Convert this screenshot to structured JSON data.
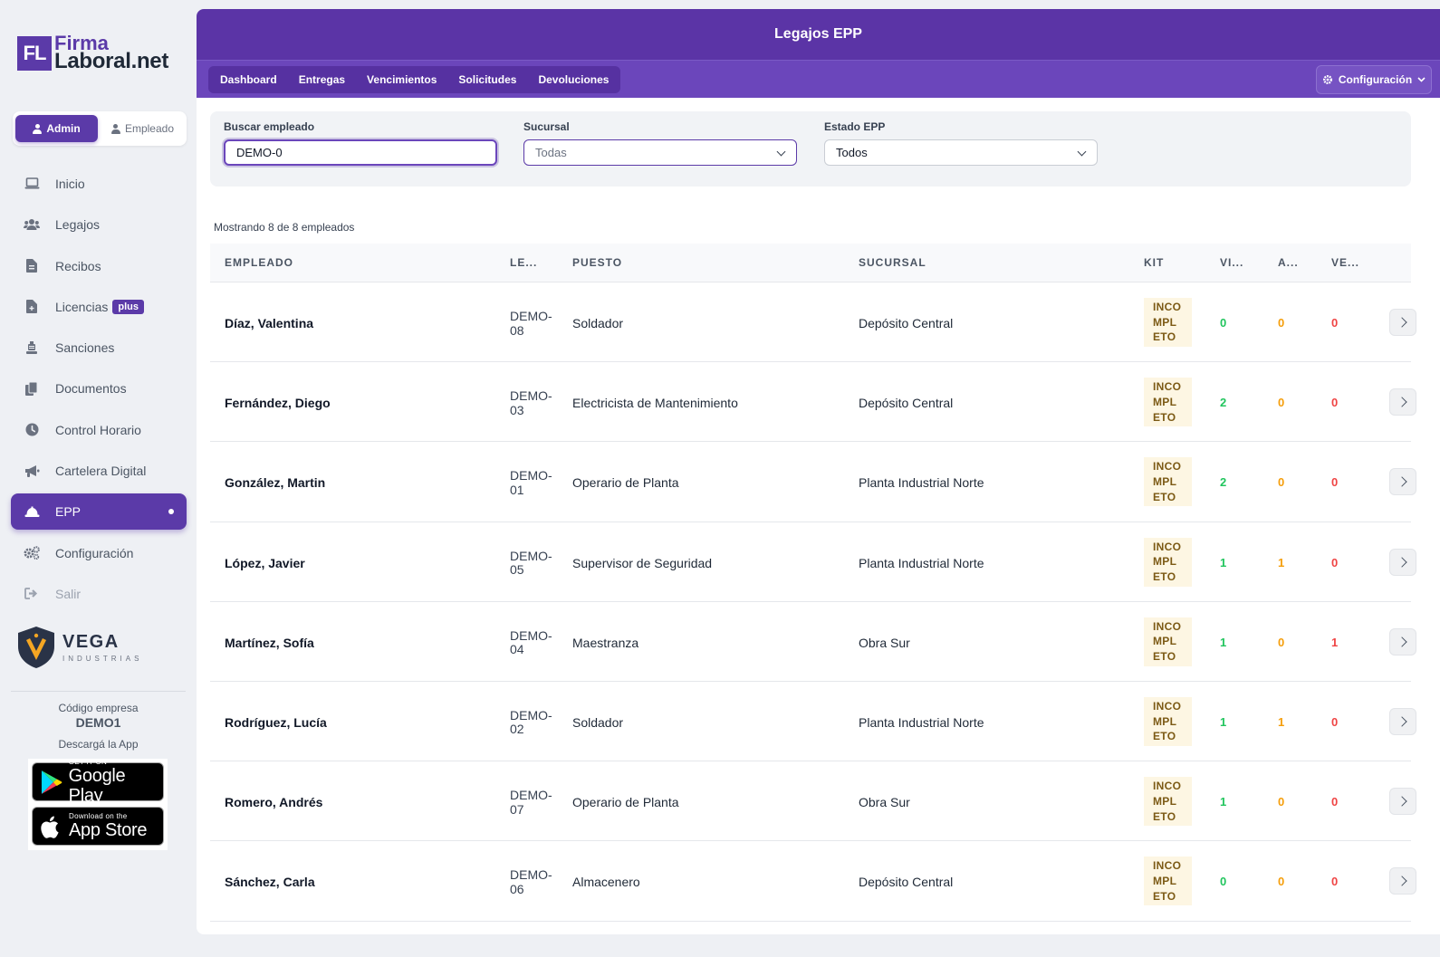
{
  "brand": {
    "logo_mark": "FL",
    "line1": "Firma",
    "line2": "Laboral.net"
  },
  "roles": {
    "admin": "Admin",
    "employee": "Empleado"
  },
  "nav": [
    {
      "label": "Inicio",
      "icon": "laptop-icon"
    },
    {
      "label": "Legajos",
      "icon": "users-icon"
    },
    {
      "label": "Recibos",
      "icon": "file-invoice-icon"
    },
    {
      "label": "Licencias",
      "icon": "file-medical-icon",
      "badge": "plus"
    },
    {
      "label": "Sanciones",
      "icon": "gavel-icon"
    },
    {
      "label": "Documentos",
      "icon": "copy-icon"
    },
    {
      "label": "Control Horario",
      "icon": "clock-icon"
    },
    {
      "label": "Cartelera Digital",
      "icon": "megaphone-icon"
    },
    {
      "label": "EPP",
      "icon": "hard-hat-icon",
      "active": true
    },
    {
      "label": "Configuración",
      "icon": "cogs-icon"
    },
    {
      "label": "Salir",
      "icon": "sign-out-icon"
    }
  ],
  "company_logo": {
    "name": "VEGA",
    "sub": "INDUSTRIAS"
  },
  "company": {
    "code_label": "Código empresa",
    "code": "DEMO1",
    "download": "Descargá la App"
  },
  "stores": {
    "google": {
      "small": "GET IT ON",
      "big": "Google Play"
    },
    "apple": {
      "small": "Download on the",
      "big": "App Store"
    }
  },
  "header": {
    "title": "Legajos EPP"
  },
  "tabs": [
    "Dashboard",
    "Entregas",
    "Vencimientos",
    "Solicitudes",
    "Devoluciones"
  ],
  "config_button": "Configuración",
  "filters": {
    "search": {
      "label": "Buscar empleado",
      "value": "DEMO-0"
    },
    "branch": {
      "label": "Sucursal",
      "value": "Todas"
    },
    "status": {
      "label": "Estado EPP",
      "value": "Todos"
    }
  },
  "showing": "Mostrando 8 de 8 empleados",
  "columns": {
    "employee": "EMPLEADO",
    "legajo": "LE...",
    "position": "PUESTO",
    "branch": "SUCURSAL",
    "kit": "KIT",
    "vi": "VI...",
    "a": "A...",
    "ve": "VE..."
  },
  "kit_status": [
    "INCO",
    "MPL",
    "ETO"
  ],
  "colors": {
    "primary": "#5b34a6",
    "green": "#22c55e",
    "orange": "#f59e0b",
    "red": "#ef4444"
  },
  "rows": [
    {
      "name": "Díaz, Valentina",
      "leg1": "DEMO-",
      "leg2": "08",
      "position": "Soldador",
      "branch": "Depósito Central",
      "vi": "0",
      "a": "0",
      "ve": "0"
    },
    {
      "name": "Fernández, Diego",
      "leg1": "DEMO-",
      "leg2": "03",
      "position": "Electricista de Mantenimiento",
      "branch": "Depósito Central",
      "vi": "2",
      "a": "0",
      "ve": "0"
    },
    {
      "name": "González, Martin",
      "leg1": "DEMO-",
      "leg2": "01",
      "position": "Operario de Planta",
      "branch": "Planta Industrial Norte",
      "vi": "2",
      "a": "0",
      "ve": "0"
    },
    {
      "name": "López, Javier",
      "leg1": "DEMO-",
      "leg2": "05",
      "position": "Supervisor de Seguridad",
      "branch": "Planta Industrial Norte",
      "vi": "1",
      "a": "1",
      "ve": "0"
    },
    {
      "name": "Martínez, Sofía",
      "leg1": "DEMO-",
      "leg2": "04",
      "position": "Maestranza",
      "branch": "Obra Sur",
      "vi": "1",
      "a": "0",
      "ve": "1"
    },
    {
      "name": "Rodríguez, Lucía",
      "leg1": "DEMO-",
      "leg2": "02",
      "position": "Soldador",
      "branch": "Planta Industrial Norte",
      "vi": "1",
      "a": "1",
      "ve": "0"
    },
    {
      "name": "Romero, Andrés",
      "leg1": "DEMO-",
      "leg2": "07",
      "position": "Operario de Planta",
      "branch": "Obra Sur",
      "vi": "1",
      "a": "0",
      "ve": "0"
    },
    {
      "name": "Sánchez, Carla",
      "leg1": "DEMO-",
      "leg2": "06",
      "position": "Almacenero",
      "branch": "Depósito Central",
      "vi": "0",
      "a": "0",
      "ve": "0"
    }
  ]
}
